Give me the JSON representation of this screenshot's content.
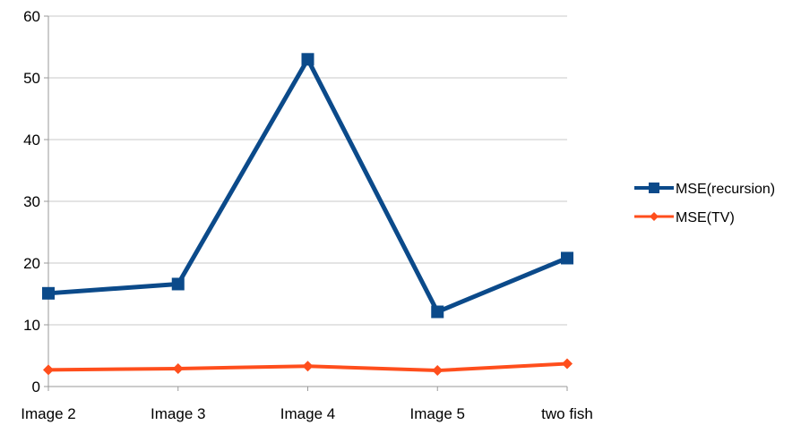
{
  "chart_data": {
    "type": "line",
    "categories": [
      "Image 2",
      "Image 3",
      "Image 4",
      "Image 5",
      "two fish"
    ],
    "ylim": [
      0,
      60
    ],
    "yticks": [
      0,
      10,
      20,
      30,
      40,
      50,
      60
    ],
    "grid": true,
    "legend_position": "right",
    "series": [
      {
        "name": "MSE(recursion)",
        "values": [
          15.1,
          16.6,
          53.0,
          12.1,
          20.8
        ],
        "color": "#0b4a8a",
        "marker": "square"
      },
      {
        "name": "MSE(TV)",
        "values": [
          2.7,
          2.9,
          3.3,
          2.6,
          3.7
        ],
        "color": "#ff4e1c",
        "marker": "diamond"
      }
    ]
  }
}
